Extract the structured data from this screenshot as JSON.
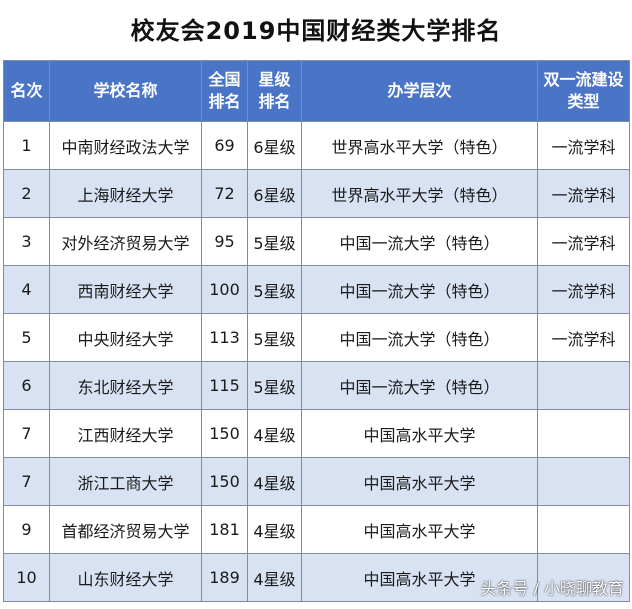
{
  "title": "校友会2019中国财经类大学排名",
  "header": {
    "rank": "名次",
    "school": "学校名称",
    "national_rank_line1": "全国",
    "national_rank_line2": "排名",
    "star_line1": "星级",
    "star_line2": "排名",
    "level": "办学层次",
    "double_first_line1": "双一流建设",
    "double_first_line2": "类型"
  },
  "rows": [
    {
      "rank": "1",
      "school": "中南财经政法大学",
      "national": "69",
      "star": "6星级",
      "level": "世界高水平大学（特色）",
      "type": "一流学科"
    },
    {
      "rank": "2",
      "school": "上海财经大学",
      "national": "72",
      "star": "6星级",
      "level": "世界高水平大学（特色）",
      "type": "一流学科"
    },
    {
      "rank": "3",
      "school": "对外经济贸易大学",
      "national": "95",
      "star": "5星级",
      "level": "中国一流大学（特色）",
      "type": "一流学科"
    },
    {
      "rank": "4",
      "school": "西南财经大学",
      "national": "100",
      "star": "5星级",
      "level": "中国一流大学（特色）",
      "type": "一流学科"
    },
    {
      "rank": "5",
      "school": "中央财经大学",
      "national": "113",
      "star": "5星级",
      "level": "中国一流大学（特色）",
      "type": "一流学科"
    },
    {
      "rank": "6",
      "school": "东北财经大学",
      "national": "115",
      "star": "5星级",
      "level": "中国一流大学（特色）",
      "type": ""
    },
    {
      "rank": "7",
      "school": "江西财经大学",
      "national": "150",
      "star": "4星级",
      "level": "中国高水平大学",
      "type": ""
    },
    {
      "rank": "7",
      "school": "浙江工商大学",
      "national": "150",
      "star": "4星级",
      "level": "中国高水平大学",
      "type": ""
    },
    {
      "rank": "9",
      "school": "首都经济贸易大学",
      "national": "181",
      "star": "4星级",
      "level": "中国高水平大学",
      "type": ""
    },
    {
      "rank": "10",
      "school": "山东财经大学",
      "national": "189",
      "star": "4星级",
      "level": "中国高水平大学",
      "type": ""
    }
  ],
  "watermark": "头条号 / 小晓聊教育",
  "colors": {
    "header_bg": "#4a74c6",
    "header_text": "#ffffff",
    "row_even_bg": "#d9e2f2",
    "row_odd_bg": "#ffffff",
    "border": "#7d8da8"
  }
}
